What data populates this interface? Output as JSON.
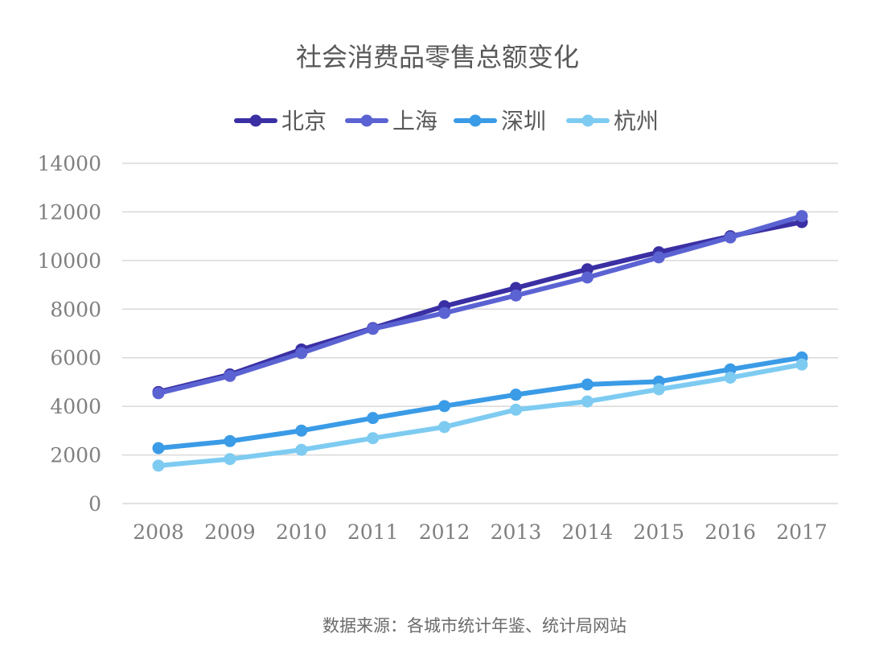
{
  "colors": {
    "background": "#ffffff",
    "grid": "#d9d9d9",
    "text_title": "#595959",
    "text_axis": "#7f7f7f"
  },
  "source_note": "数据来源：各城市统计年鉴、统计局网站",
  "chart_data": {
    "type": "line",
    "title": "社会消费品零售总额变化",
    "xlabel": "",
    "ylabel": "",
    "categories": [
      "2008",
      "2009",
      "2010",
      "2011",
      "2012",
      "2013",
      "2014",
      "2015",
      "2016",
      "2017"
    ],
    "yticks": [
      0,
      2000,
      4000,
      6000,
      8000,
      10000,
      12000,
      14000
    ],
    "ylim": [
      0,
      14000
    ],
    "grid": true,
    "legend_position": "top",
    "series": [
      {
        "name": "北京",
        "color": "#3a2fa3",
        "values": [
          4590,
          5310,
          6340,
          7220,
          8120,
          8870,
          9640,
          10340,
          11000,
          11580
        ]
      },
      {
        "name": "上海",
        "color": "#5b63d3",
        "values": [
          4540,
          5250,
          6190,
          7190,
          7840,
          8560,
          9300,
          10130,
          10950,
          11830
        ]
      },
      {
        "name": "深圳",
        "color": "#3a9be6",
        "values": [
          2280,
          2570,
          3000,
          3520,
          4010,
          4480,
          4900,
          5020,
          5520,
          6010
        ]
      },
      {
        "name": "杭州",
        "color": "#7ecbf2",
        "values": [
          1560,
          1830,
          2210,
          2690,
          3150,
          3860,
          4200,
          4700,
          5180,
          5720
        ]
      }
    ]
  }
}
